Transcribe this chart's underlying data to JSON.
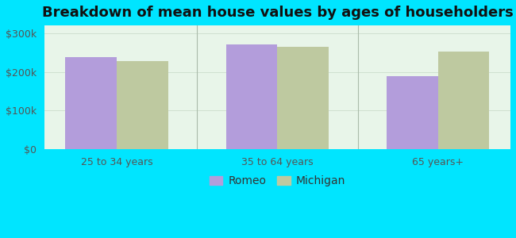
{
  "title": "Breakdown of mean house values by ages of householders",
  "categories": [
    "25 to 34 years",
    "35 to 64 years",
    "65 years+"
  ],
  "romeo_values": [
    238000,
    271000,
    188000
  ],
  "michigan_values": [
    228000,
    265000,
    252000
  ],
  "romeo_color": "#b39ddb",
  "michigan_color": "#bec9a0",
  "background_outer": "#00e5ff",
  "background_inner_top": "#e8f5e8",
  "background_inner_bottom": "#f8fff8",
  "ylim": [
    0,
    320000
  ],
  "yticks": [
    0,
    100000,
    200000,
    300000
  ],
  "ytick_labels": [
    "$0",
    "$100k",
    "$200k",
    "$300k"
  ],
  "legend_labels": [
    "Romeo",
    "Michigan"
  ],
  "bar_width": 0.32,
  "title_fontsize": 13,
  "tick_fontsize": 9,
  "legend_fontsize": 10
}
